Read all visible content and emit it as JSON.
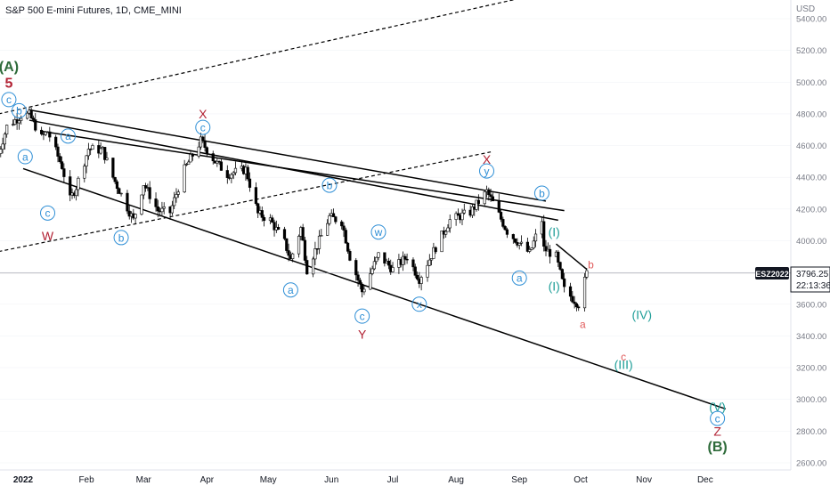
{
  "header": {
    "symbol": "S&P 500 E-mini Futures, 1D, CME_MINI"
  },
  "price_axis": {
    "currency": "USD",
    "ticks": [
      "5400.00",
      "5200.00",
      "5000.00",
      "4800.00",
      "4600.00",
      "4400.00",
      "4200.00",
      "4000.00",
      "3800.00",
      "3600.00",
      "3400.00",
      "3200.00",
      "3000.00",
      "2800.00",
      "2600.00"
    ],
    "last": {
      "ticker": "ESZ2022",
      "price": "3796.25",
      "countdown": "22:13:36"
    }
  },
  "time_axis": {
    "labels": [
      "2022",
      "Feb",
      "Mar",
      "Apr",
      "May",
      "Jun",
      "Jul",
      "Aug",
      "Sep",
      "Oct",
      "Nov",
      "Dec"
    ]
  },
  "colors": {
    "up": "#ffffff",
    "down": "#000000",
    "wick": "#000000",
    "wave_blue": "#2f8fd6",
    "wave_teal": "#1f9e98",
    "wave_red": "#b22234",
    "wave_green": "#2e6b3a",
    "wave_red_light": "#e05a5a",
    "grid": "#e0e3eb",
    "axis_text": "#787b86"
  },
  "chart_data": {
    "type": "candlestick",
    "title": "S&P 500 E-mini Futures, 1D, CME_MINI",
    "y_unit": "USD",
    "ylim": [
      2560,
      5560
    ],
    "last_price": 3796.25,
    "close_path": [
      {
        "date": "2021-12-20",
        "close": 4550
      },
      {
        "date": "2021-12-24",
        "close": 4720
      },
      {
        "date": "2021-12-31",
        "close": 4790
      },
      {
        "date": "2022-01-04",
        "close": 4795
      },
      {
        "date": "2022-01-10",
        "close": 4650
      },
      {
        "date": "2022-01-13",
        "close": 4690
      },
      {
        "date": "2022-01-20",
        "close": 4470
      },
      {
        "date": "2022-01-24",
        "close": 4260
      },
      {
        "date": "2022-01-27",
        "close": 4340
      },
      {
        "date": "2022-02-02",
        "close": 4580
      },
      {
        "date": "2022-02-09",
        "close": 4570
      },
      {
        "date": "2022-02-14",
        "close": 4400
      },
      {
        "date": "2022-02-24",
        "close": 4130
      },
      {
        "date": "2022-03-01",
        "close": 4360
      },
      {
        "date": "2022-03-08",
        "close": 4190
      },
      {
        "date": "2022-03-14",
        "close": 4180
      },
      {
        "date": "2022-03-21",
        "close": 4450
      },
      {
        "date": "2022-03-29",
        "close": 4630
      },
      {
        "date": "2022-04-05",
        "close": 4500
      },
      {
        "date": "2022-04-11",
        "close": 4420
      },
      {
        "date": "2022-04-20",
        "close": 4450
      },
      {
        "date": "2022-04-26",
        "close": 4170
      },
      {
        "date": "2022-05-02",
        "close": 4130
      },
      {
        "date": "2022-05-09",
        "close": 3990
      },
      {
        "date": "2022-05-12",
        "close": 3880
      },
      {
        "date": "2022-05-17",
        "close": 4080
      },
      {
        "date": "2022-05-20",
        "close": 3820
      },
      {
        "date": "2022-05-31",
        "close": 4150
      },
      {
        "date": "2022-06-06",
        "close": 4120
      },
      {
        "date": "2022-06-10",
        "close": 3900
      },
      {
        "date": "2022-06-16",
        "close": 3680
      },
      {
        "date": "2022-06-24",
        "close": 3910
      },
      {
        "date": "2022-07-01",
        "close": 3820
      },
      {
        "date": "2022-07-08",
        "close": 3900
      },
      {
        "date": "2022-07-14",
        "close": 3760
      },
      {
        "date": "2022-07-22",
        "close": 3960
      },
      {
        "date": "2022-07-29",
        "close": 4130
      },
      {
        "date": "2022-08-08",
        "close": 4180
      },
      {
        "date": "2022-08-16",
        "close": 4310
      },
      {
        "date": "2022-08-19",
        "close": 4240
      },
      {
        "date": "2022-08-26",
        "close": 4060
      },
      {
        "date": "2022-09-06",
        "close": 3920
      },
      {
        "date": "2022-09-12",
        "close": 4130
      },
      {
        "date": "2022-09-13",
        "close": 3950
      },
      {
        "date": "2022-09-19",
        "close": 3900
      },
      {
        "date": "2022-09-23",
        "close": 3690
      },
      {
        "date": "2022-09-30",
        "close": 3600
      },
      {
        "date": "2022-10-04",
        "close": 3796
      }
    ],
    "trendlines": [
      {
        "from": {
          "date": "2022-01-04",
          "price": 4825
        },
        "to": {
          "date": "2022-09-14",
          "price": 4250
        },
        "style": "solid"
      },
      {
        "from": {
          "date": "2022-01-04",
          "price": 4760
        },
        "to": {
          "date": "2022-09-20",
          "price": 4130
        },
        "style": "solid"
      },
      {
        "from": {
          "date": "2022-01-10",
          "price": 4690
        },
        "to": {
          "date": "2022-09-23",
          "price": 4190
        },
        "style": "solid"
      },
      {
        "from": {
          "date": "2022-01-01",
          "price": 4455
        },
        "to": {
          "date": "2022-12-11",
          "price": 2940
        },
        "style": "solid"
      },
      {
        "from": {
          "date": "2022-09-19",
          "price": 3980
        },
        "to": {
          "date": "2022-10-04",
          "price": 3820
        },
        "style": "solid"
      },
      {
        "from": {
          "date": "2021-12-20",
          "price": 3932
        },
        "to": {
          "date": "2022-08-18",
          "price": 4560
        },
        "style": "dashed"
      },
      {
        "from": {
          "date": "2021-12-20",
          "price": 4800
        },
        "to": {
          "date": "2022-09-23",
          "price": 5590
        },
        "style": "dashed"
      }
    ],
    "last_price_line": {
      "price": 3796.25,
      "style": "solid"
    },
    "wave_labels": [
      {
        "text": "(A)",
        "date": "2021-12-25",
        "price": 5100,
        "color": "green",
        "style": "bold"
      },
      {
        "text": "5",
        "date": "2021-12-25",
        "price": 4998,
        "color": "red",
        "style": "bold"
      },
      {
        "text": "c",
        "date": "2021-12-25",
        "price": 4890,
        "color": "blue",
        "style": "circle"
      },
      {
        "text": "b",
        "date": "2021-12-30",
        "price": 4820,
        "color": "blue",
        "style": "circle"
      },
      {
        "text": "a",
        "date": "2022-01-02",
        "price": 4530,
        "color": "blue",
        "style": "circle"
      },
      {
        "text": "a",
        "date": "2022-01-23",
        "price": 4660,
        "color": "blue",
        "style": "circle"
      },
      {
        "text": "c",
        "date": "2022-01-13",
        "price": 4175,
        "color": "blue",
        "style": "circle"
      },
      {
        "text": "W",
        "date": "2022-01-13",
        "price": 4030,
        "color": "red",
        "style": "plain"
      },
      {
        "text": "b",
        "date": "2022-02-18",
        "price": 4020,
        "color": "blue",
        "style": "circle"
      },
      {
        "text": "X",
        "date": "2022-03-30",
        "price": 4800,
        "color": "red",
        "style": "plain"
      },
      {
        "text": "c",
        "date": "2022-03-30",
        "price": 4715,
        "color": "blue",
        "style": "circle"
      },
      {
        "text": "a",
        "date": "2022-05-12",
        "price": 3690,
        "color": "blue",
        "style": "circle"
      },
      {
        "text": "b",
        "date": "2022-05-31",
        "price": 4350,
        "color": "blue",
        "style": "circle"
      },
      {
        "text": "w",
        "date": "2022-06-24",
        "price": 4055,
        "color": "blue",
        "style": "circle"
      },
      {
        "text": "c",
        "date": "2022-06-16",
        "price": 3525,
        "color": "blue",
        "style": "circle"
      },
      {
        "text": "Y",
        "date": "2022-06-16",
        "price": 3410,
        "color": "red",
        "style": "plain"
      },
      {
        "text": "x",
        "date": "2022-07-14",
        "price": 3600,
        "color": "blue",
        "style": "circle"
      },
      {
        "text": "X",
        "date": "2022-08-16",
        "price": 4515,
        "color": "red",
        "style": "plain"
      },
      {
        "text": "y",
        "date": "2022-08-16",
        "price": 4440,
        "color": "blue",
        "style": "circle"
      },
      {
        "text": "b",
        "date": "2022-09-12",
        "price": 4300,
        "color": "blue",
        "style": "circle"
      },
      {
        "text": "a",
        "date": "2022-09-01",
        "price": 3765,
        "color": "blue",
        "style": "circle"
      },
      {
        "text": "(I)",
        "date": "2022-09-18",
        "price": 4055,
        "color": "teal",
        "style": "plain"
      },
      {
        "text": "(I)",
        "date": "2022-09-18",
        "price": 3715,
        "color": "teal",
        "style": "plain"
      },
      {
        "text": "b",
        "date": "2022-10-06",
        "price": 3850,
        "color": "red_light",
        "style": "plain"
      },
      {
        "text": "a",
        "date": "2022-10-02",
        "price": 3475,
        "color": "red_light",
        "style": "plain"
      },
      {
        "text": "(IV)",
        "date": "2022-10-31",
        "price": 3535,
        "color": "teal",
        "style": "plain"
      },
      {
        "text": "c",
        "date": "2022-10-22",
        "price": 3270,
        "color": "red_light",
        "style": "plain"
      },
      {
        "text": "(III)",
        "date": "2022-10-22",
        "price": 3220,
        "color": "teal",
        "style": "plain"
      },
      {
        "text": "(V)",
        "date": "2022-12-07",
        "price": 2955,
        "color": "teal",
        "style": "plain"
      },
      {
        "text": "c",
        "date": "2022-12-07",
        "price": 2880,
        "color": "blue",
        "style": "circle"
      },
      {
        "text": "Z",
        "date": "2022-12-07",
        "price": 2800,
        "color": "red",
        "style": "plain"
      },
      {
        "text": "(B)",
        "date": "2022-12-07",
        "price": 2705,
        "color": "green",
        "style": "bold"
      }
    ]
  }
}
